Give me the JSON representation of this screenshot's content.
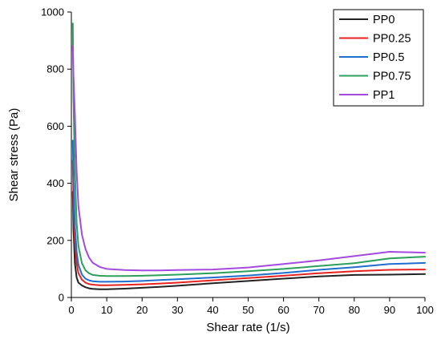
{
  "chart_data": {
    "type": "line",
    "xlabel": "Shear rate (1/s)",
    "ylabel": "Shear stress (Pa)",
    "xlim": [
      0,
      100
    ],
    "ylim": [
      0,
      1000
    ],
    "xticks": [
      0,
      10,
      20,
      30,
      40,
      50,
      60,
      70,
      80,
      90,
      100
    ],
    "yticks": [
      0,
      200,
      400,
      600,
      800,
      1000
    ],
    "grid": false,
    "legend_position": "top-right",
    "series": [
      {
        "name": "PP0",
        "color": "#222222",
        "x": [
          0.4,
          0.6,
          1,
          1.5,
          2,
          3,
          4,
          5,
          6,
          8,
          10,
          15,
          20,
          25,
          30,
          40,
          50,
          60,
          70,
          80,
          90,
          100
        ],
        "y": [
          370,
          240,
          120,
          70,
          52,
          42,
          36,
          32,
          30,
          29,
          29,
          31,
          34,
          37,
          41,
          50,
          58,
          66,
          74,
          79,
          80,
          82
        ]
      },
      {
        "name": "PP0.25",
        "color": "#e8221f",
        "x": [
          0.4,
          0.6,
          1,
          1.5,
          2,
          3,
          4,
          5,
          6,
          8,
          10,
          15,
          20,
          25,
          30,
          40,
          50,
          60,
          70,
          80,
          90,
          100
        ],
        "y": [
          480,
          330,
          190,
          120,
          85,
          62,
          52,
          47,
          45,
          43,
          43,
          44,
          46,
          49,
          52,
          60,
          68,
          76,
          85,
          92,
          97,
          98
        ]
      },
      {
        "name": "PP0.5",
        "color": "#1e6ecf",
        "x": [
          0.4,
          0.6,
          1,
          1.5,
          2,
          3,
          4,
          5,
          6,
          8,
          10,
          15,
          20,
          25,
          30,
          40,
          50,
          60,
          70,
          80,
          90,
          100
        ],
        "y": [
          550,
          410,
          250,
          160,
          115,
          80,
          66,
          60,
          57,
          55,
          55,
          56,
          58,
          61,
          64,
          70,
          77,
          86,
          97,
          106,
          117,
          121
        ]
      },
      {
        "name": "PP0.75",
        "color": "#2ca05a",
        "x": [
          0.4,
          0.6,
          1,
          1.5,
          2,
          3,
          4,
          5,
          6,
          8,
          10,
          15,
          20,
          25,
          30,
          40,
          50,
          60,
          70,
          80,
          90,
          100
        ],
        "y": [
          960,
          700,
          440,
          260,
          180,
          120,
          95,
          85,
          79,
          76,
          75,
          75,
          76,
          78,
          80,
          85,
          92,
          100,
          110,
          120,
          137,
          143
        ]
      },
      {
        "name": "PP1",
        "color": "#a54ae0",
        "x": [
          0.4,
          0.6,
          1,
          1.5,
          2,
          3,
          4,
          5,
          6,
          8,
          10,
          15,
          20,
          25,
          30,
          40,
          50,
          60,
          70,
          80,
          90,
          100
        ],
        "y": [
          880,
          780,
          640,
          440,
          320,
          220,
          170,
          140,
          122,
          107,
          100,
          96,
          95,
          95,
          96,
          98,
          105,
          117,
          130,
          145,
          160,
          157
        ]
      }
    ]
  }
}
